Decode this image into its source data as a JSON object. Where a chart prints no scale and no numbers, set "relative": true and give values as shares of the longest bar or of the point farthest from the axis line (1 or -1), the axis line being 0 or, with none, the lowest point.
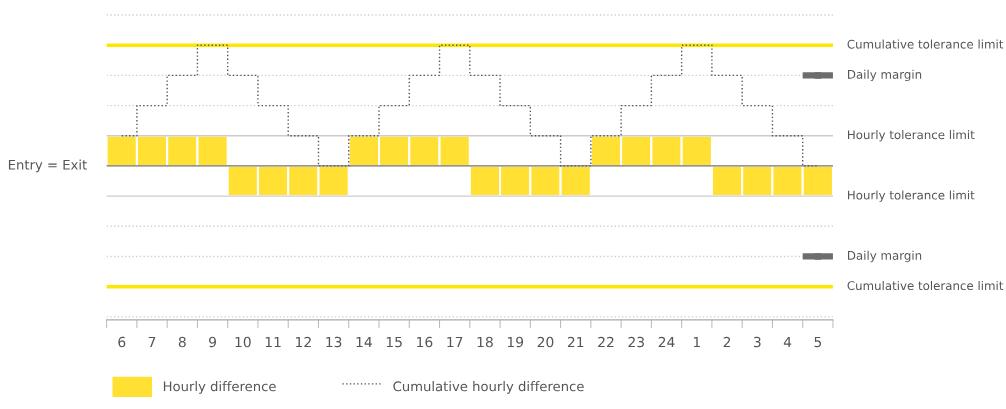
{
  "chart_data": {
    "type": "bar",
    "relative": true,
    "categories": [
      "6",
      "7",
      "8",
      "9",
      "10",
      "11",
      "12",
      "13",
      "14",
      "15",
      "16",
      "17",
      "18",
      "19",
      "20",
      "21",
      "22",
      "23",
      "24",
      "1",
      "2",
      "3",
      "4",
      "5"
    ],
    "series": [
      {
        "name": "Hourly difference",
        "color": "#ffe033",
        "values": [
          0.25,
          0.25,
          0.25,
          0.25,
          -0.25,
          -0.25,
          -0.25,
          -0.25,
          0.25,
          0.25,
          0.25,
          0.25,
          -0.25,
          -0.25,
          -0.25,
          -0.25,
          0.25,
          0.25,
          0.25,
          0.25,
          -0.25,
          -0.25,
          -0.25,
          -0.25
        ]
      },
      {
        "name": "Cumulative hourly difference",
        "type": "step",
        "color": "#555555",
        "line_style": "dotted",
        "values": [
          0.25,
          0.5,
          0.75,
          1,
          0.75,
          0.5,
          0.25,
          0,
          0.25,
          0.5,
          0.75,
          1,
          0.75,
          0.5,
          0.25,
          0,
          0.25,
          0.5,
          0.75,
          1,
          0.75,
          0.5,
          0.25,
          0
        ]
      },
      {
        "type": "scatter",
        "color": "#6d6d6d",
        "marker": "square",
        "x": [
          "5",
          "5"
        ],
        "values": [
          0.75,
          -0.75
        ]
      }
    ],
    "ref_lines": [
      {
        "axis": "y",
        "value": 1.25,
        "color": "#d0d0d0",
        "line_style": "dotted"
      },
      {
        "axis": "y",
        "value": 0.75,
        "color": "#d0d0d0",
        "line_style": "dotted"
      },
      {
        "axis": "y",
        "value": 0.5,
        "color": "#d0d0d0",
        "line_style": "dotted"
      },
      {
        "axis": "y",
        "value": -0.5,
        "color": "#d0d0d0",
        "line_style": "dotted"
      },
      {
        "axis": "y",
        "value": -0.75,
        "color": "#d0d0d0",
        "line_style": "dotted"
      },
      {
        "axis": "y",
        "value": -1.25,
        "color": "#d0d0d0",
        "line_style": "dotted"
      },
      {
        "axis": "y",
        "value": 0.25,
        "color": "#cccccc",
        "line_style": "solid",
        "label": "Hourly tolerance limit"
      },
      {
        "axis": "y",
        "value": -0.25,
        "color": "#cccccc",
        "line_style": "solid",
        "label": "Hourly tolerance limit"
      },
      {
        "axis": "y",
        "value": 0,
        "color": "#707070",
        "line_style": "solid",
        "label": "Entry = Exit"
      },
      {
        "axis": "y",
        "value": 1,
        "color": "#ffe600",
        "line_style": "solid",
        "label": "Cumulative tolerance limit"
      },
      {
        "axis": "y",
        "value": -1,
        "color": "#ffe600",
        "line_style": "solid",
        "label": "Cumulative tolerance limit"
      }
    ],
    "annotations": [
      {
        "text": "Daily margin",
        "x": "5",
        "y": 0.75
      },
      {
        "text": "Daily margin",
        "x": "5",
        "y": -0.75
      }
    ],
    "legend": "bottom"
  }
}
